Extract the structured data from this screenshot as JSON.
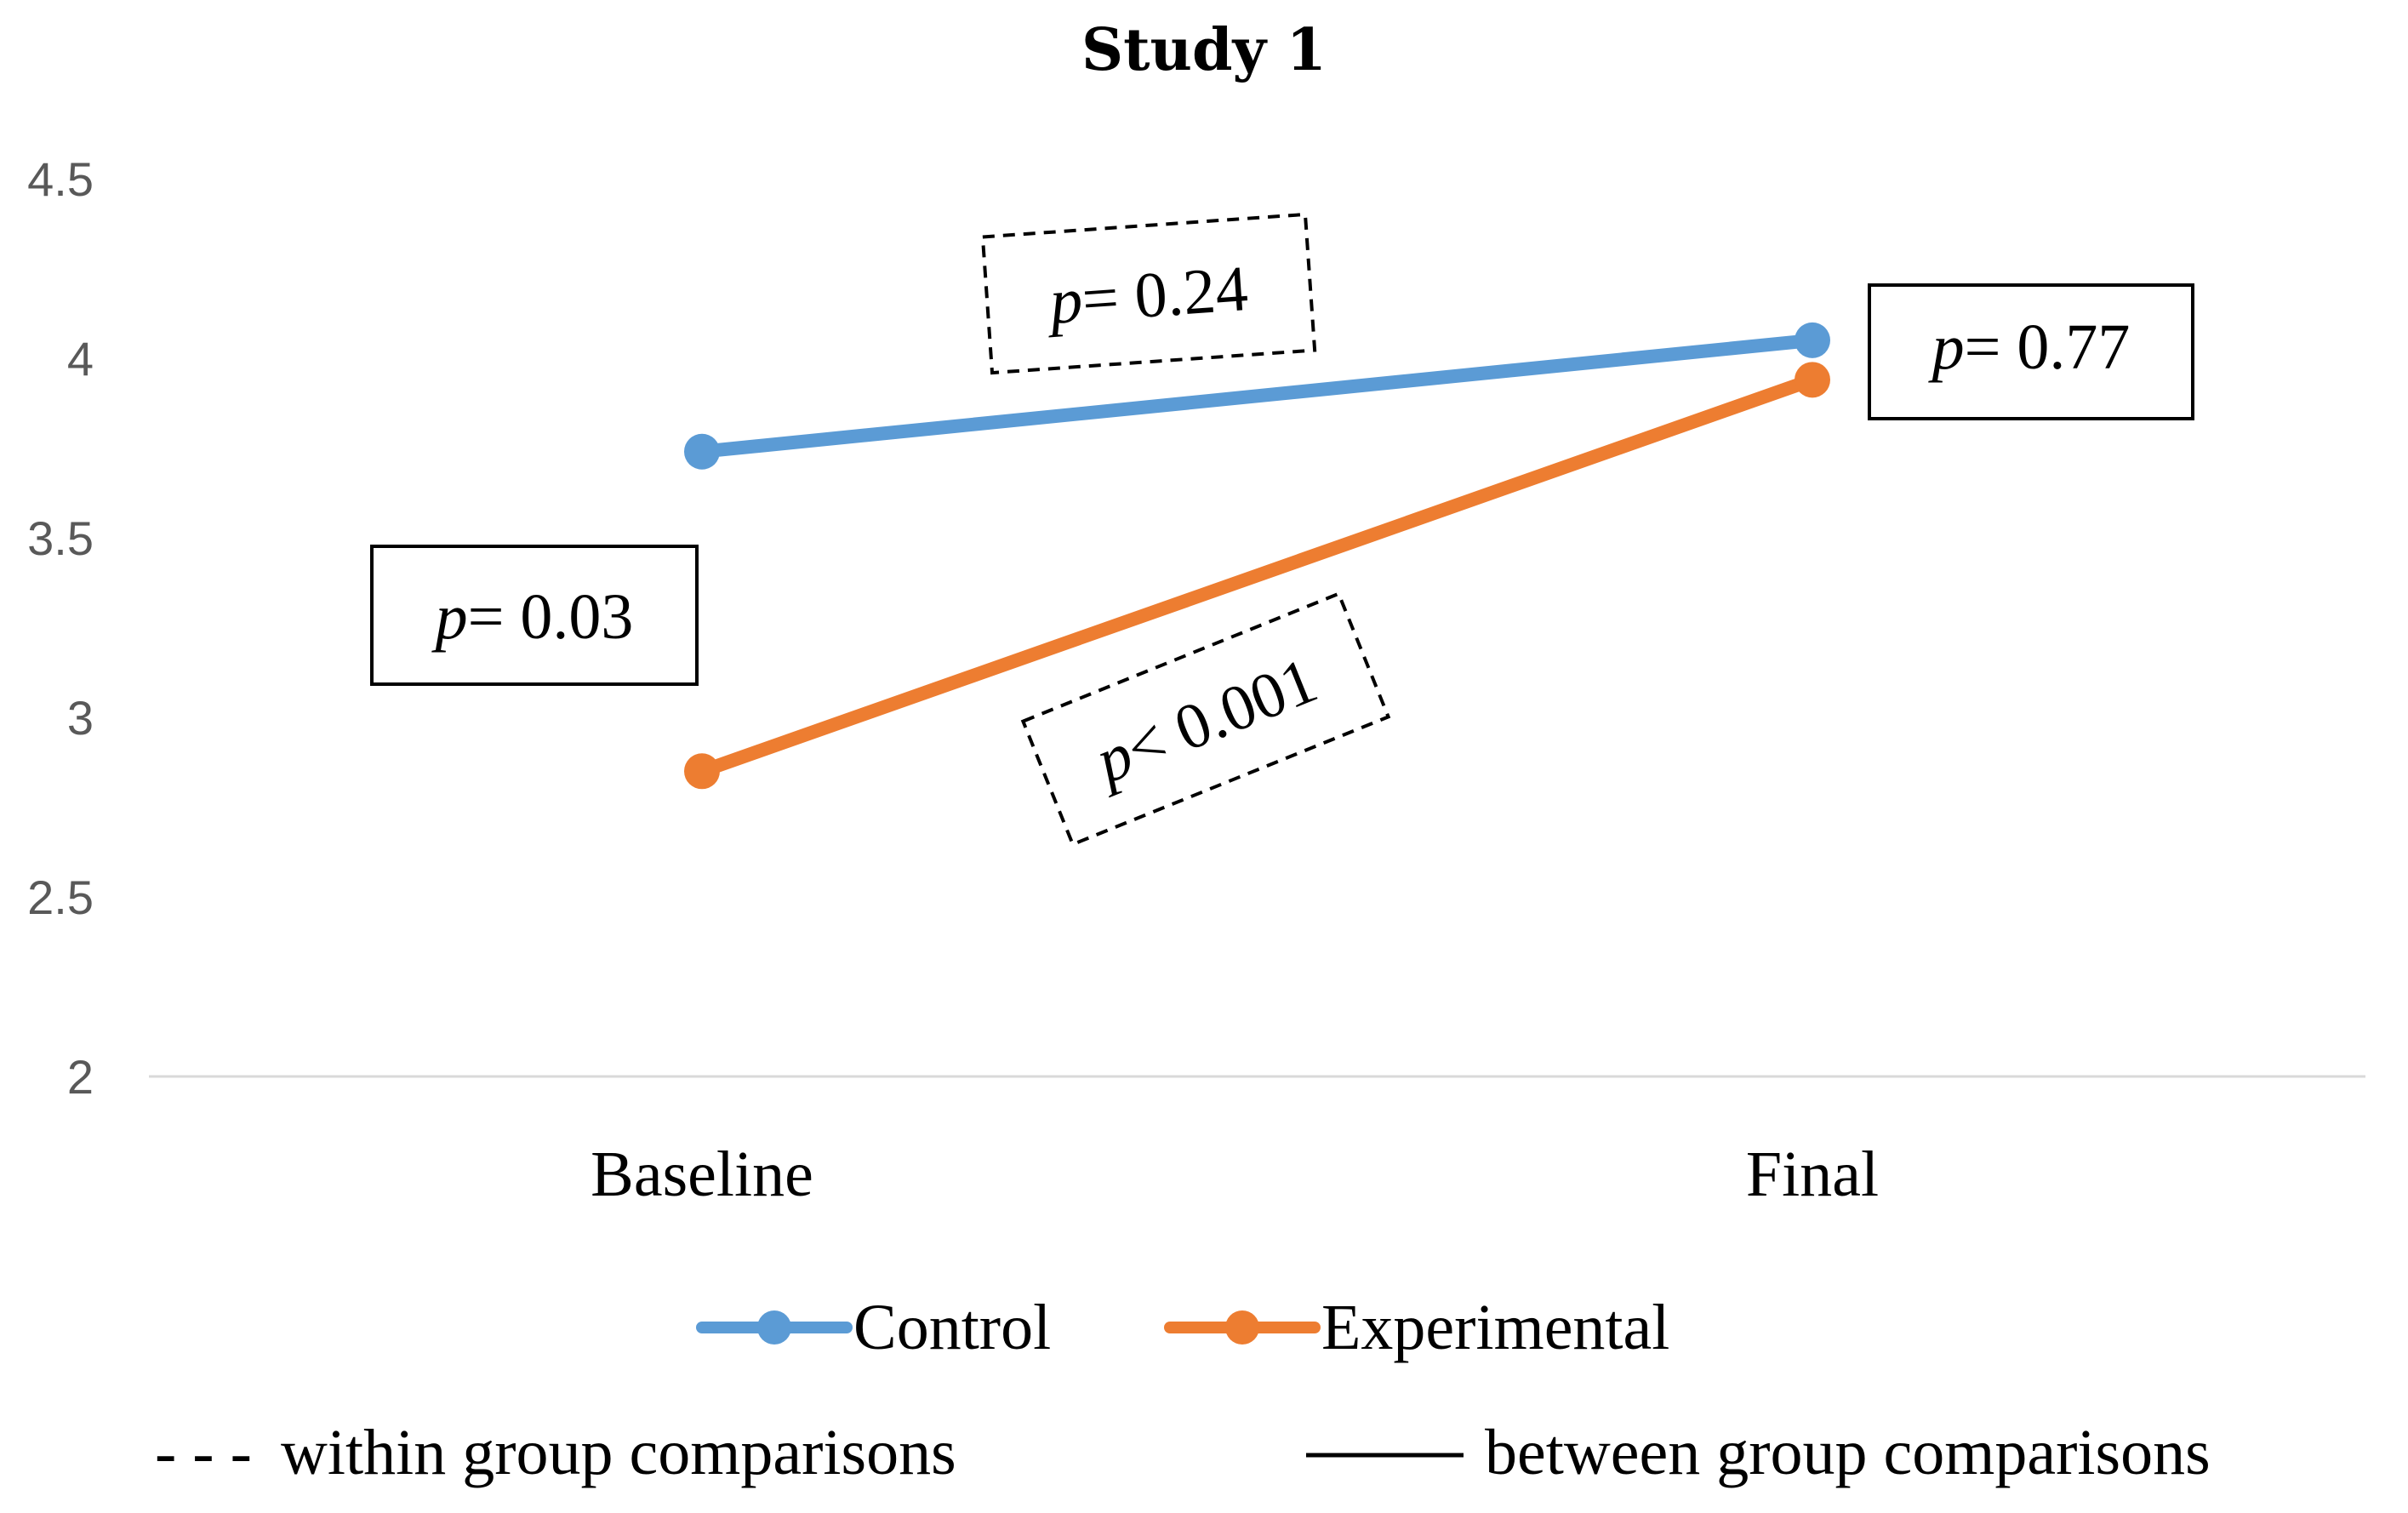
{
  "chart_data": {
    "type": "line",
    "title": "Study 1",
    "categories": [
      "Baseline",
      "Final"
    ],
    "ylim": [
      2,
      4.5
    ],
    "yticks": [
      "2",
      "2.5",
      "3",
      "3.5",
      "4",
      "4.5"
    ],
    "ytick_values": [
      2,
      2.5,
      3,
      3.5,
      4,
      4.5
    ],
    "xlabel": "",
    "ylabel": "",
    "grid": false,
    "series": [
      {
        "name": "Control",
        "values": [
          3.74,
          4.05
        ],
        "color": "#5B9BD5"
      },
      {
        "name": "Experimental",
        "values": [
          2.85,
          3.94
        ],
        "color": "#ED7D31"
      }
    ],
    "annotations": [
      {
        "id": "control-within",
        "p": "p",
        "text": "= 0.24",
        "style": "dashed",
        "comparison": "within"
      },
      {
        "id": "exp-within",
        "p": "p",
        "text": "< 0.001",
        "style": "dashed",
        "comparison": "within"
      },
      {
        "id": "baseline-between",
        "p": "p",
        "text": "= 0.03",
        "style": "solid",
        "comparison": "between"
      },
      {
        "id": "final-between",
        "p": "p",
        "text": "= 0.77",
        "style": "solid",
        "comparison": "between"
      }
    ],
    "legend": {
      "position": "bottom",
      "series_labels": [
        "Control",
        "Experimental"
      ],
      "line_keys": [
        {
          "symbol": "- - -",
          "label": "within group  comparisons"
        },
        {
          "symbol": "",
          "label": "between group comparisons"
        }
      ]
    }
  }
}
